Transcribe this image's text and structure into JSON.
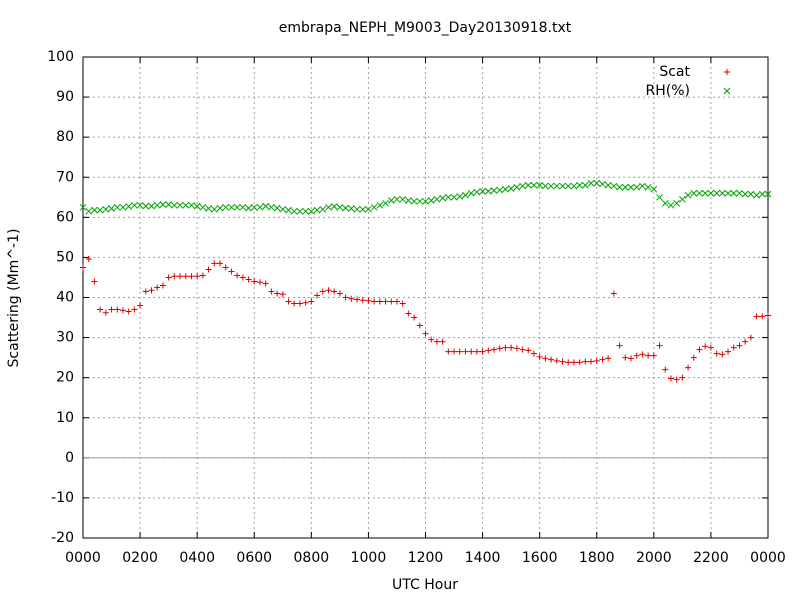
{
  "chart_data": {
    "type": "scatter",
    "title": "embrapa_NEPH_M9003_Day20130918.txt",
    "x_label": "UTC Hour",
    "y_label": "Scattering (Mm^-1)",
    "xlim": [
      0,
      24
    ],
    "ylim": [
      -20,
      100
    ],
    "xticks": [
      {
        "value": 0,
        "label": "0000"
      },
      {
        "value": 2,
        "label": "0200"
      },
      {
        "value": 4,
        "label": "0400"
      },
      {
        "value": 6,
        "label": "0600"
      },
      {
        "value": 8,
        "label": "0800"
      },
      {
        "value": 10,
        "label": "1000"
      },
      {
        "value": 12,
        "label": "1200"
      },
      {
        "value": 14,
        "label": "1400"
      },
      {
        "value": 16,
        "label": "1600"
      },
      {
        "value": 18,
        "label": "1800"
      },
      {
        "value": 20,
        "label": "2000"
      },
      {
        "value": 22,
        "label": "2200"
      },
      {
        "value": 24,
        "label": "0000"
      }
    ],
    "yticks": [
      -20,
      -10,
      0,
      10,
      20,
      30,
      40,
      50,
      60,
      70,
      80,
      90,
      100
    ],
    "grid": true,
    "legend": "top-right",
    "x": [
      0,
      0.2,
      0.4,
      0.6,
      0.8,
      1,
      1.2,
      1.4,
      1.6,
      1.8,
      2,
      2.2,
      2.4,
      2.6,
      2.8,
      3,
      3.2,
      3.4,
      3.6,
      3.8,
      4,
      4.2,
      4.4,
      4.6,
      4.8,
      5,
      5.2,
      5.4,
      5.6,
      5.8,
      6,
      6.2,
      6.4,
      6.6,
      6.8,
      7,
      7.2,
      7.4,
      7.6,
      7.8,
      8,
      8.2,
      8.4,
      8.6,
      8.8,
      9,
      9.2,
      9.4,
      9.6,
      9.8,
      10,
      10.2,
      10.4,
      10.6,
      10.8,
      11,
      11.2,
      11.4,
      11.6,
      11.8,
      12,
      12.2,
      12.4,
      12.6,
      12.8,
      13,
      13.2,
      13.4,
      13.6,
      13.8,
      14,
      14.2,
      14.4,
      14.6,
      14.8,
      15,
      15.2,
      15.4,
      15.6,
      15.8,
      16,
      16.2,
      16.4,
      16.6,
      16.8,
      17,
      17.2,
      17.4,
      17.6,
      17.8,
      18,
      18.2,
      18.4,
      18.6,
      18.8,
      19,
      19.2,
      19.4,
      19.6,
      19.8,
      20,
      20.2,
      20.4,
      20.6,
      20.8,
      21,
      21.2,
      21.4,
      21.6,
      21.8,
      22,
      22.2,
      22.4,
      22.6,
      22.8,
      23,
      23.2,
      23.4,
      23.6,
      23.8,
      24
    ],
    "series": [
      {
        "name": "Scat",
        "color": "#e00000",
        "marker": "+",
        "values": [
          47.5,
          49.6,
          44,
          37,
          36.2,
          37,
          37,
          36.8,
          36.5,
          37,
          38,
          41.5,
          41.8,
          42.5,
          43,
          45,
          45.3,
          45.3,
          45.3,
          45.3,
          45.3,
          45.5,
          47,
          48.5,
          48.5,
          47.5,
          46.5,
          45.5,
          45,
          44.5,
          44,
          43.8,
          43.5,
          41.5,
          41,
          40.8,
          39,
          38.5,
          38.5,
          38.7,
          39,
          40.5,
          41.5,
          41.8,
          41.5,
          41,
          40,
          39.7,
          39.5,
          39.3,
          39.2,
          39,
          39,
          39,
          39,
          39,
          38.5,
          36,
          35,
          33,
          31,
          29.5,
          29,
          29,
          26.5,
          26.5,
          26.5,
          26.5,
          26.5,
          26.5,
          26.5,
          26.8,
          27,
          27.3,
          27.5,
          27.5,
          27.3,
          27,
          26.8,
          26,
          25.2,
          24.8,
          24.5,
          24.2,
          24,
          23.8,
          23.8,
          23.8,
          24,
          24,
          24.2,
          24.5,
          24.8,
          41,
          28,
          25,
          24.8,
          25.5,
          25.8,
          25.5,
          25.5,
          28,
          22,
          19.8,
          19.5,
          20,
          22.5,
          25,
          27,
          27.8,
          27.5,
          26,
          25.8,
          26.5,
          27.5,
          28,
          29,
          30,
          35.3,
          35.3,
          35.5
        ]
      },
      {
        "name": "RH(%)",
        "color": "#00a000",
        "marker": "x",
        "values": [
          62.5,
          61.5,
          61.8,
          61.8,
          62,
          62.2,
          62.5,
          62.5,
          62.7,
          63,
          63,
          62.8,
          62.8,
          63,
          63.2,
          63.2,
          63,
          63,
          63,
          63,
          62.8,
          62.5,
          62.2,
          62,
          62.3,
          62.5,
          62.5,
          62.5,
          62.5,
          62.3,
          62.5,
          62.5,
          62.8,
          62.5,
          62.3,
          62,
          61.8,
          61.5,
          61.5,
          61.5,
          61.5,
          61.8,
          62,
          62.5,
          62.7,
          62.5,
          62.3,
          62.2,
          62,
          62,
          62,
          62.5,
          63,
          63.5,
          64.2,
          64.5,
          64.5,
          64.2,
          64,
          64,
          64,
          64.2,
          64.5,
          64.8,
          65,
          65,
          65.2,
          65.5,
          66,
          66.3,
          66.5,
          66.5,
          66.7,
          66.8,
          67,
          67.2,
          67.5,
          67.8,
          68,
          68,
          68,
          67.8,
          67.8,
          67.8,
          67.8,
          67.8,
          67.8,
          68,
          68,
          68.5,
          68.5,
          68.3,
          68,
          67.8,
          67.5,
          67.5,
          67.5,
          67.5,
          67.8,
          67.5,
          67,
          65,
          63.5,
          63,
          63.5,
          64.5,
          65.5,
          66,
          66,
          66,
          66,
          66,
          66,
          66,
          66,
          66,
          65.8,
          65.8,
          65.5,
          65.8,
          65.8
        ]
      }
    ]
  }
}
